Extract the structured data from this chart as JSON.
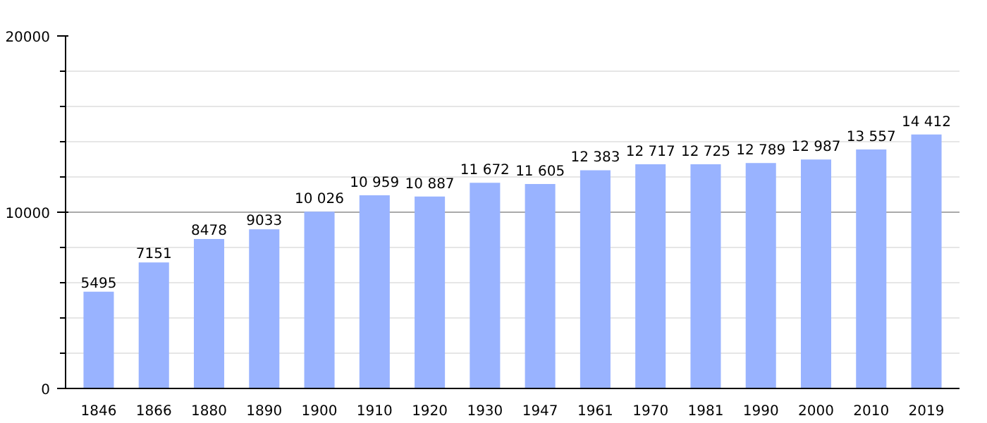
{
  "chart_data": {
    "type": "bar",
    "categories": [
      "1846",
      "1866",
      "1880",
      "1890",
      "1900",
      "1910",
      "1920",
      "1930",
      "1947",
      "1961",
      "1970",
      "1981",
      "1990",
      "2000",
      "2010",
      "2019"
    ],
    "values": [
      5495,
      7151,
      8478,
      9033,
      10026,
      10959,
      10887,
      11672,
      11605,
      12383,
      12717,
      12725,
      12789,
      12987,
      13557,
      14412
    ],
    "value_labels": [
      "5495",
      "7151",
      "8478",
      "9033",
      "10 026",
      "10 959",
      "10 887",
      "11 672",
      "11 605",
      "12 383",
      "12 717",
      "12 725",
      "12 789",
      "12 987",
      "13 557",
      "14 412"
    ],
    "color": "#99b3ff",
    "ylim": [
      0,
      20000
    ],
    "yticks": [
      0,
      10000,
      20000
    ],
    "grid": "y"
  }
}
